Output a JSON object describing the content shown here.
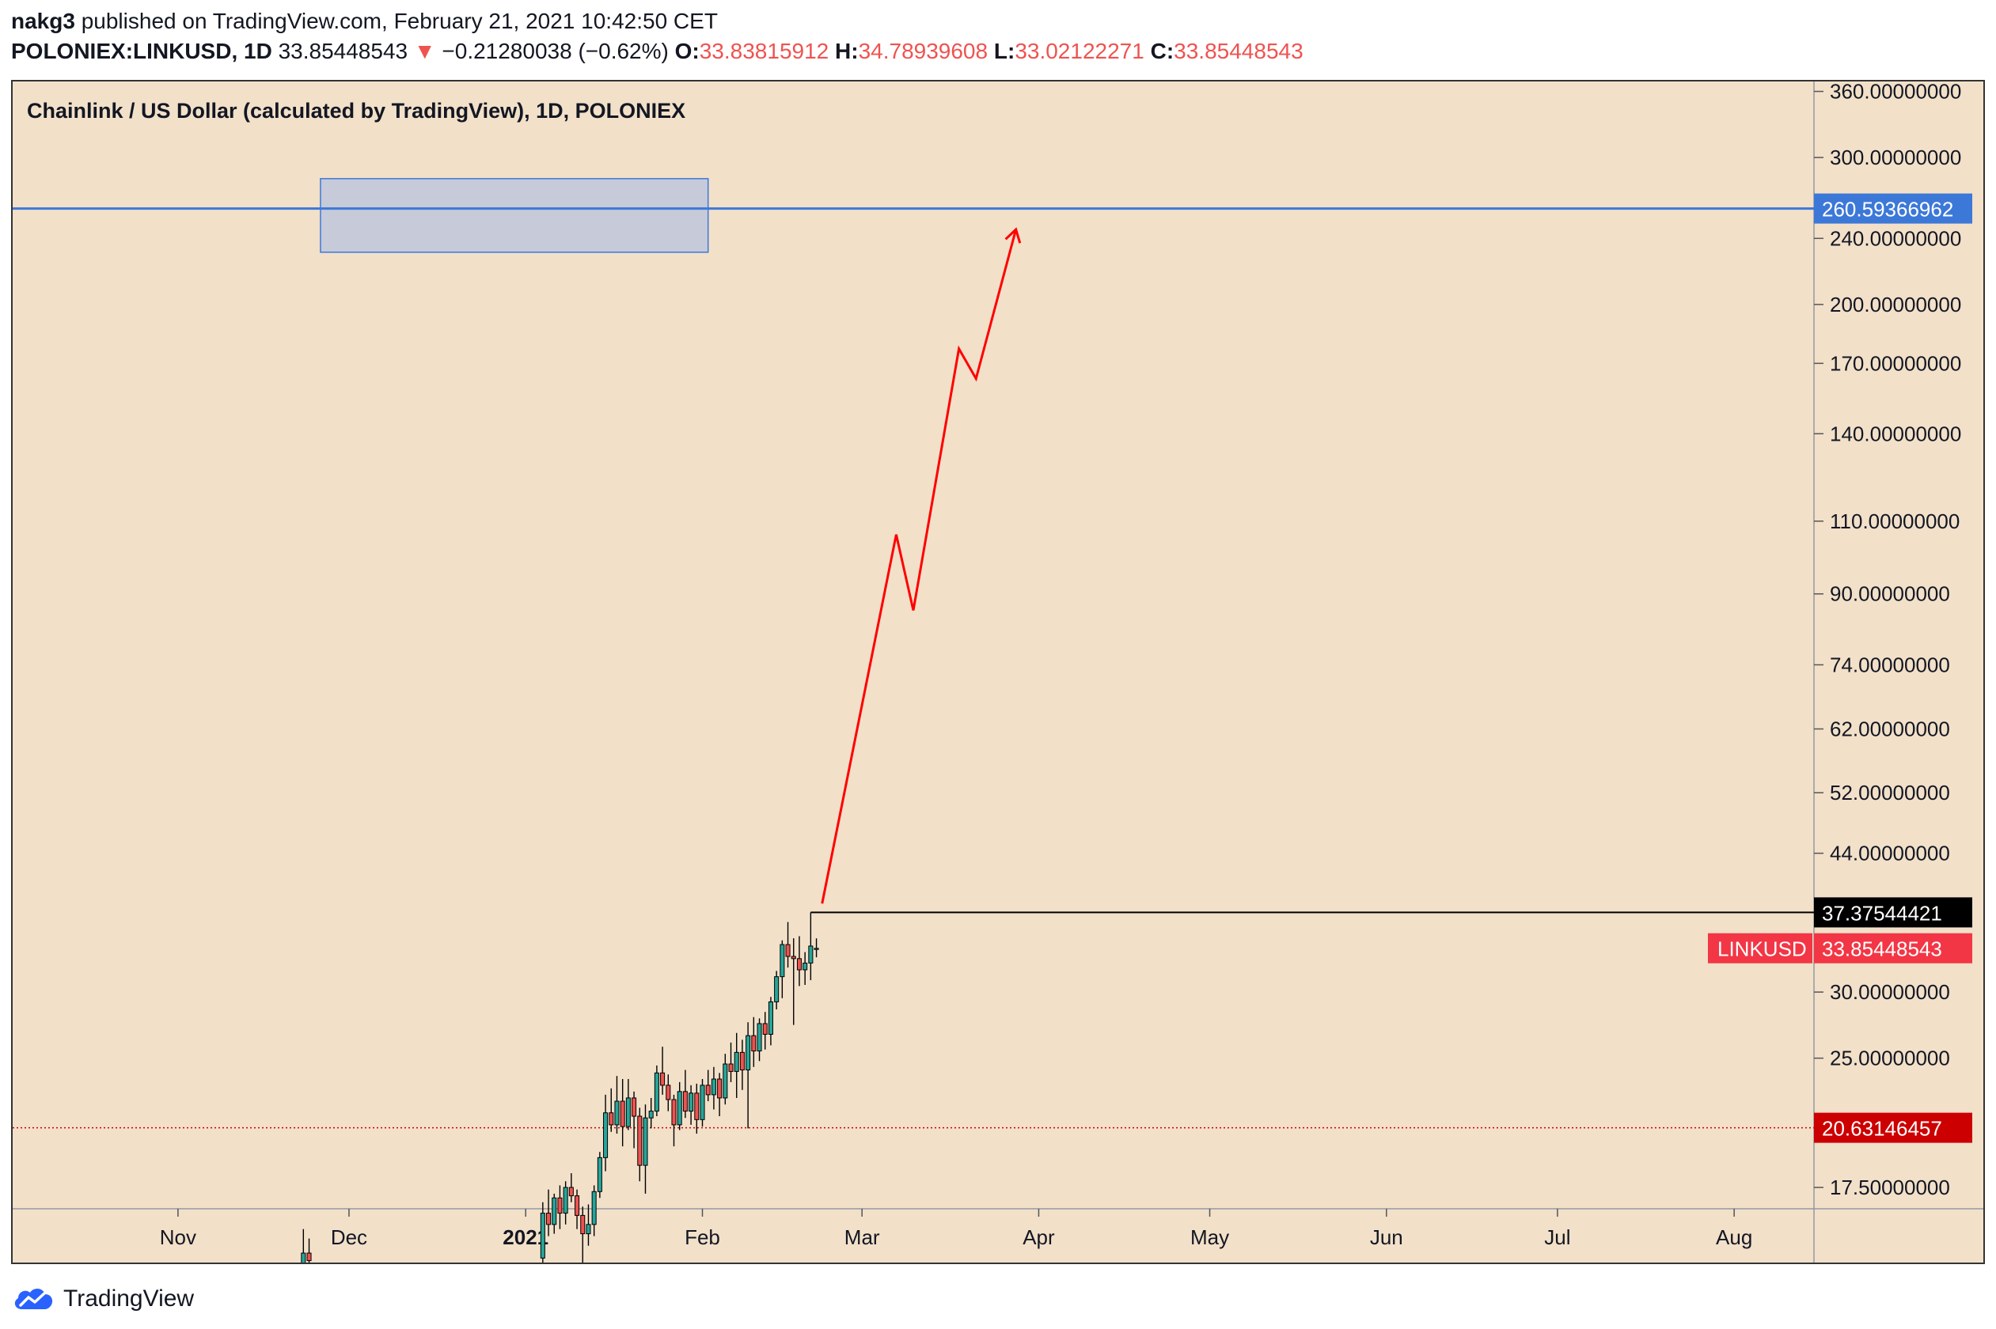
{
  "header": {
    "author": "nakg3",
    "published_text": "published on TradingView.com, February 21, 2021 10:42:50 CET",
    "symbol": "POLONIEX:LINKUSD, 1D",
    "last_price": "33.85448543",
    "change_arrow": "▼",
    "change": "−0.21280038 (−0.62%)",
    "open_label": "O:",
    "open": "33.83815912",
    "high_label": "H:",
    "high": "34.78939608",
    "low_label": "L:",
    "low": "33.02122271",
    "close_label": "C:",
    "close": "33.85448543"
  },
  "footer": {
    "brand": "TradingView"
  },
  "colors": {
    "background": "#f2e0c9",
    "up_candle": "#26a69a",
    "down_candle": "#ef5350",
    "projection": "#ff0000",
    "resistance_line": "#3c78d8",
    "zone_fill": "#b4c0e0",
    "last_price_label": "#f23645",
    "support_label": "#cc0000"
  },
  "chart_data": {
    "type": "line",
    "title": "Chainlink / US Dollar (calculated by TradingView), 1D, POLONIEX",
    "scale": "log",
    "y_tick_labels": [
      "360.00000000",
      "300.00000000",
      "240.00000000",
      "200.00000000",
      "170.00000000",
      "140.00000000",
      "110.00000000",
      "90.00000000",
      "74.00000000",
      "62.00000000",
      "52.00000000",
      "44.00000000",
      "30.00000000",
      "25.00000000",
      "17.50000000"
    ],
    "y_ticks": [
      360,
      300,
      240,
      200,
      170,
      140,
      110,
      90,
      74,
      62,
      52,
      44,
      30,
      25,
      17.5
    ],
    "x_tick_labels": [
      "Nov",
      "Dec",
      "2021",
      "Feb",
      "Mar",
      "Apr",
      "May",
      "Jun",
      "Jul",
      "Aug"
    ],
    "x_ticks": [
      "2020-11-01",
      "2020-12-01",
      "2021-01-01",
      "2021-02-01",
      "2021-03-01",
      "2021-04-01",
      "2021-05-01",
      "2021-06-01",
      "2021-07-01",
      "2021-08-01"
    ],
    "bold_x_tick": "2021",
    "x_range": [
      "2020-10-03",
      "2021-08-15"
    ],
    "y_range": [
      16.5,
      370
    ],
    "series": [
      {
        "name": "LINKUSD",
        "kind": "candlestick",
        "candles": [
          {
            "d": "2020-11-23",
            "o": 14.2,
            "h": 15.6,
            "l": 13.6,
            "c": 14.6
          },
          {
            "d": "2020-11-24",
            "o": 14.6,
            "h": 15.2,
            "l": 13.9,
            "c": 14.3
          },
          {
            "d": "2021-01-04",
            "o": 14.4,
            "h": 16.8,
            "l": 13.9,
            "c": 16.3
          },
          {
            "d": "2021-01-05",
            "o": 16.3,
            "h": 17.4,
            "l": 15.3,
            "c": 15.8
          },
          {
            "d": "2021-01-06",
            "o": 15.8,
            "h": 17.2,
            "l": 15.4,
            "c": 17.0
          },
          {
            "d": "2021-01-07",
            "o": 17.0,
            "h": 17.6,
            "l": 15.6,
            "c": 16.3
          },
          {
            "d": "2021-01-08",
            "o": 16.3,
            "h": 17.8,
            "l": 15.8,
            "c": 17.5
          },
          {
            "d": "2021-01-09",
            "o": 17.5,
            "h": 18.2,
            "l": 16.8,
            "c": 17.1
          },
          {
            "d": "2021-01-10",
            "o": 17.1,
            "h": 17.4,
            "l": 15.6,
            "c": 16.2
          },
          {
            "d": "2021-01-11",
            "o": 16.2,
            "h": 16.6,
            "l": 14.0,
            "c": 15.4
          },
          {
            "d": "2021-01-12",
            "o": 15.4,
            "h": 16.7,
            "l": 14.9,
            "c": 15.8
          },
          {
            "d": "2021-01-13",
            "o": 15.8,
            "h": 17.6,
            "l": 15.3,
            "c": 17.3
          },
          {
            "d": "2021-01-14",
            "o": 17.3,
            "h": 19.3,
            "l": 17.0,
            "c": 19.0
          },
          {
            "d": "2021-01-15",
            "o": 19.0,
            "h": 22.6,
            "l": 18.3,
            "c": 21.5
          },
          {
            "d": "2021-01-16",
            "o": 21.5,
            "h": 23.0,
            "l": 20.4,
            "c": 20.8
          },
          {
            "d": "2021-01-17",
            "o": 20.8,
            "h": 23.8,
            "l": 20.3,
            "c": 22.2
          },
          {
            "d": "2021-01-18",
            "o": 22.2,
            "h": 23.6,
            "l": 19.6,
            "c": 20.7
          },
          {
            "d": "2021-01-19",
            "o": 20.7,
            "h": 23.6,
            "l": 20.5,
            "c": 22.4
          },
          {
            "d": "2021-01-20",
            "o": 22.4,
            "h": 22.8,
            "l": 19.5,
            "c": 21.3
          },
          {
            "d": "2021-01-21",
            "o": 21.3,
            "h": 21.8,
            "l": 17.8,
            "c": 18.6
          },
          {
            "d": "2021-01-22",
            "o": 18.6,
            "h": 22.0,
            "l": 17.2,
            "c": 21.2
          },
          {
            "d": "2021-01-23",
            "o": 21.2,
            "h": 22.4,
            "l": 20.6,
            "c": 21.6
          },
          {
            "d": "2021-01-24",
            "o": 21.6,
            "h": 24.5,
            "l": 21.3,
            "c": 24.0
          },
          {
            "d": "2021-01-25",
            "o": 24.0,
            "h": 25.8,
            "l": 22.6,
            "c": 23.2
          },
          {
            "d": "2021-01-26",
            "o": 23.2,
            "h": 23.9,
            "l": 21.6,
            "c": 22.3
          },
          {
            "d": "2021-01-27",
            "o": 22.3,
            "h": 22.6,
            "l": 19.6,
            "c": 20.8
          },
          {
            "d": "2021-01-28",
            "o": 20.8,
            "h": 23.4,
            "l": 20.5,
            "c": 22.8
          },
          {
            "d": "2021-01-29",
            "o": 22.8,
            "h": 24.2,
            "l": 21.2,
            "c": 21.6
          },
          {
            "d": "2021-01-30",
            "o": 21.6,
            "h": 23.2,
            "l": 20.8,
            "c": 22.7
          },
          {
            "d": "2021-01-31",
            "o": 22.7,
            "h": 23.3,
            "l": 20.3,
            "c": 21.1
          },
          {
            "d": "2021-02-01",
            "o": 21.1,
            "h": 23.6,
            "l": 20.7,
            "c": 23.2
          },
          {
            "d": "2021-02-02",
            "o": 23.2,
            "h": 24.2,
            "l": 22.2,
            "c": 22.6
          },
          {
            "d": "2021-02-03",
            "o": 22.6,
            "h": 24.4,
            "l": 21.7,
            "c": 23.6
          },
          {
            "d": "2021-02-04",
            "o": 23.6,
            "h": 24.0,
            "l": 21.3,
            "c": 22.4
          },
          {
            "d": "2021-02-05",
            "o": 22.4,
            "h": 25.3,
            "l": 22.0,
            "c": 24.6
          },
          {
            "d": "2021-02-06",
            "o": 24.6,
            "h": 26.1,
            "l": 23.4,
            "c": 24.1
          },
          {
            "d": "2021-02-07",
            "o": 24.1,
            "h": 26.8,
            "l": 22.4,
            "c": 25.4
          },
          {
            "d": "2021-02-08",
            "o": 25.4,
            "h": 26.3,
            "l": 22.9,
            "c": 24.2
          },
          {
            "d": "2021-02-09",
            "o": 24.2,
            "h": 27.6,
            "l": 20.6,
            "c": 26.6
          },
          {
            "d": "2021-02-10",
            "o": 26.6,
            "h": 28.0,
            "l": 24.4,
            "c": 25.5
          },
          {
            "d": "2021-02-11",
            "o": 25.5,
            "h": 27.9,
            "l": 24.8,
            "c": 27.5
          },
          {
            "d": "2021-02-12",
            "o": 27.5,
            "h": 28.4,
            "l": 25.6,
            "c": 26.7
          },
          {
            "d": "2021-02-13",
            "o": 26.7,
            "h": 29.6,
            "l": 25.9,
            "c": 29.2
          },
          {
            "d": "2021-02-14",
            "o": 29.2,
            "h": 31.8,
            "l": 28.6,
            "c": 31.3
          },
          {
            "d": "2021-02-15",
            "o": 31.3,
            "h": 34.6,
            "l": 29.5,
            "c": 34.2
          },
          {
            "d": "2021-02-16",
            "o": 34.2,
            "h": 36.4,
            "l": 32.1,
            "c": 33.1
          },
          {
            "d": "2021-02-17",
            "o": 33.1,
            "h": 34.8,
            "l": 27.4,
            "c": 32.9
          },
          {
            "d": "2021-02-18",
            "o": 32.9,
            "h": 35.0,
            "l": 30.5,
            "c": 31.9
          },
          {
            "d": "2021-02-19",
            "o": 31.9,
            "h": 33.5,
            "l": 30.6,
            "c": 32.5
          },
          {
            "d": "2021-02-20",
            "o": 32.5,
            "h": 37.38,
            "l": 31.0,
            "c": 34.06
          },
          {
            "d": "2021-02-21",
            "o": 33.84,
            "h": 34.79,
            "l": 33.02,
            "c": 33.85
          }
        ]
      },
      {
        "kind": "projection",
        "points": [
          {
            "d": "2021-02-22",
            "v": 38.3
          },
          {
            "d": "2021-03-07",
            "v": 106
          },
          {
            "d": "2021-03-10",
            "v": 86
          },
          {
            "d": "2021-03-18",
            "v": 177
          },
          {
            "d": "2021-03-21",
            "v": 163
          },
          {
            "d": "2021-03-28",
            "v": 246
          }
        ]
      }
    ],
    "annotations": {
      "resistance_value": 260.59366962,
      "resistance_label": "260.59366962",
      "zone": {
        "from": "2020-11-26",
        "to": "2021-02-02",
        "low": 231,
        "high": 283
      },
      "high_value": 37.37544421,
      "high_label": "37.37544421",
      "high_line_start": "2021-02-20",
      "last_value": 33.85448543,
      "last_label": "33.85448543",
      "last_tag": "LINKUSD",
      "support_value": 20.63146457,
      "support_label": "20.63146457"
    }
  }
}
